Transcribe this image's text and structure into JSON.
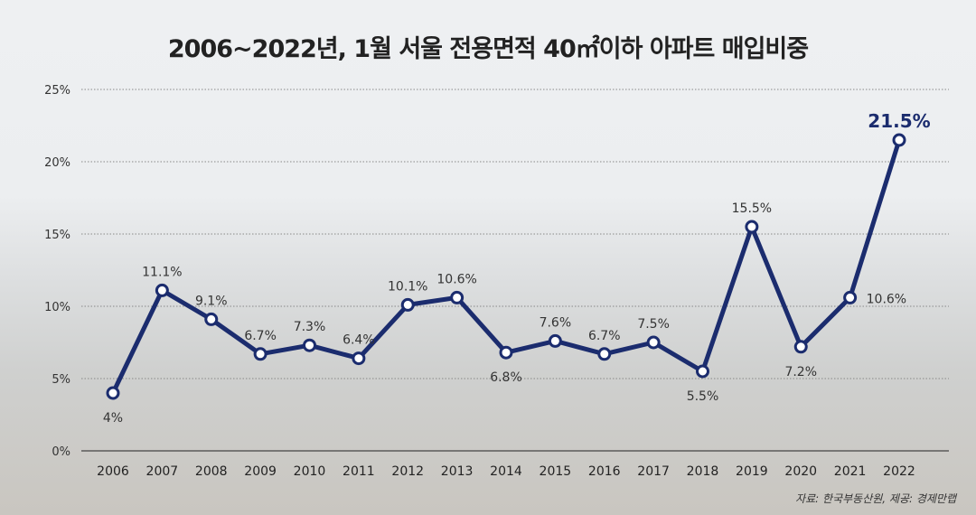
{
  "chart_data": {
    "type": "line",
    "title": "2006~2022년, 1월 서울 전용면적 40㎡이하 아파트 매입비중",
    "source": "자료: 한국부동산원, 제공: 경제만랩",
    "categories": [
      "2006",
      "2007",
      "2008",
      "2009",
      "2010",
      "2011",
      "2012",
      "2013",
      "2014",
      "2015",
      "2016",
      "2017",
      "2018",
      "2019",
      "2020",
      "2021",
      "2022"
    ],
    "values": [
      4,
      11.1,
      9.1,
      6.7,
      7.3,
      6.4,
      10.1,
      10.6,
      6.8,
      7.6,
      6.7,
      7.5,
      5.5,
      15.5,
      7.2,
      10.6,
      21.5
    ],
    "data_labels": [
      "4%",
      "11.1%",
      "9.1%",
      "6.7%",
      "7.3%",
      "6.4%",
      "10.1%",
      "10.6%",
      "6.8%",
      "7.6%",
      "6.7%",
      "7.5%",
      "5.5%",
      "15.5%",
      "7.2%",
      "10.6%",
      "21.5%"
    ],
    "y_ticks": [
      "0%",
      "5%",
      "10%",
      "15%",
      "20%",
      "25%"
    ],
    "ylim": [
      0,
      25
    ],
    "grid": true,
    "line_color": "#1b2c6e",
    "highlight_color": "#1b2c6e"
  }
}
